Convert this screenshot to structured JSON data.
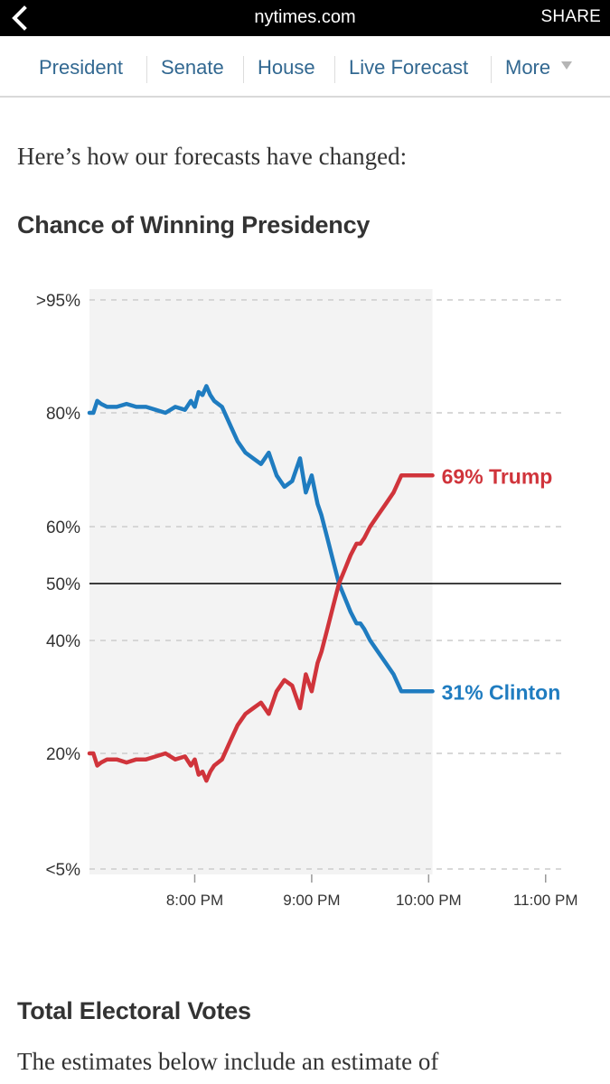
{
  "header": {
    "domain": "nytimes.com",
    "share_label": "SHARE"
  },
  "nav": {
    "items": [
      "President",
      "Senate",
      "House",
      "Live Forecast",
      "More"
    ]
  },
  "article": {
    "intro": "Here’s how our forecasts have changed:",
    "chart_heading": "Chance of Winning Presidency",
    "next_heading": "Total Electoral Votes",
    "next_paragraph": "The estimates below include an estimate of"
  },
  "chart_data": {
    "type": "line",
    "title": "Chance of Winning Presidency",
    "y_tick_labels": [
      ">95%",
      "80%",
      "60%",
      "50%",
      "40%",
      "20%",
      "<5%"
    ],
    "x_tick_labels": [
      "8:00 PM",
      "9:00 PM",
      "10:00 PM",
      "11:00 PM"
    ],
    "xlim": [
      "7:06 PM",
      "11:08 PM"
    ],
    "grid": true,
    "series": [
      {
        "name": "Clinton",
        "color": "#1f7cc0",
        "end_label": "31% Clinton",
        "x": [
          "7:06 PM",
          "7:08 PM",
          "7:10 PM",
          "7:12 PM",
          "7:15 PM",
          "7:20 PM",
          "7:25 PM",
          "7:30 PM",
          "7:35 PM",
          "7:40 PM",
          "7:45 PM",
          "7:50 PM",
          "7:55 PM",
          "7:58 PM",
          "8:00 PM",
          "8:02 PM",
          "8:04 PM",
          "8:06 PM",
          "8:08 PM",
          "8:10 PM",
          "8:14 PM",
          "8:18 PM",
          "8:22 PM",
          "8:26 PM",
          "8:30 PM",
          "8:34 PM",
          "8:38 PM",
          "8:42 PM",
          "8:46 PM",
          "8:50 PM",
          "8:54 PM",
          "8:57 PM",
          "9:00 PM",
          "9:03 PM",
          "9:05 PM",
          "9:08 PM",
          "9:11 PM",
          "9:14 PM",
          "9:17 PM",
          "9:20 PM",
          "9:23 PM",
          "9:25 PM",
          "9:27 PM",
          "9:30 PM",
          "9:34 PM",
          "9:38 PM",
          "9:42 PM",
          "9:46 PM",
          "9:50 PM",
          "9:54 PM",
          "9:58 PM",
          "10:00 PM",
          "10:02 PM"
        ],
        "values": [
          80,
          80,
          82,
          81.5,
          81,
          81,
          81.5,
          81,
          81,
          80.5,
          80,
          81,
          80.5,
          82,
          81,
          83.5,
          83,
          84.5,
          83,
          82,
          81,
          78,
          75,
          73,
          72,
          71,
          73,
          69,
          67,
          68,
          72,
          66,
          69,
          64,
          62,
          58,
          54,
          50,
          47.5,
          45,
          43,
          43,
          42,
          40,
          38,
          36,
          34,
          31,
          31,
          31,
          31,
          31,
          31
        ]
      },
      {
        "name": "Trump",
        "color": "#d0343b",
        "end_label": "69% Trump",
        "x": [
          "7:06 PM",
          "7:08 PM",
          "7:10 PM",
          "7:12 PM",
          "7:15 PM",
          "7:20 PM",
          "7:25 PM",
          "7:30 PM",
          "7:35 PM",
          "7:40 PM",
          "7:45 PM",
          "7:50 PM",
          "7:55 PM",
          "7:58 PM",
          "8:00 PM",
          "8:02 PM",
          "8:04 PM",
          "8:06 PM",
          "8:08 PM",
          "8:10 PM",
          "8:14 PM",
          "8:18 PM",
          "8:22 PM",
          "8:26 PM",
          "8:30 PM",
          "8:34 PM",
          "8:38 PM",
          "8:42 PM",
          "8:46 PM",
          "8:50 PM",
          "8:54 PM",
          "8:57 PM",
          "9:00 PM",
          "9:03 PM",
          "9:05 PM",
          "9:08 PM",
          "9:11 PM",
          "9:14 PM",
          "9:17 PM",
          "9:20 PM",
          "9:23 PM",
          "9:25 PM",
          "9:27 PM",
          "9:30 PM",
          "9:34 PM",
          "9:38 PM",
          "9:42 PM",
          "9:46 PM",
          "9:50 PM",
          "9:54 PM",
          "9:58 PM",
          "10:00 PM",
          "10:02 PM"
        ],
        "values": [
          20,
          20,
          18,
          18.5,
          19,
          19,
          18.5,
          19,
          19,
          19.5,
          20,
          19,
          19.5,
          18,
          19,
          16.5,
          17,
          15.5,
          17,
          18,
          19,
          22,
          25,
          27,
          28,
          29,
          27,
          31,
          33,
          32,
          28,
          34,
          31,
          36,
          38,
          42,
          46,
          50,
          52.5,
          55,
          57,
          57,
          58,
          60,
          62,
          64,
          66,
          69,
          69,
          69,
          69,
          69,
          69
        ]
      }
    ]
  }
}
